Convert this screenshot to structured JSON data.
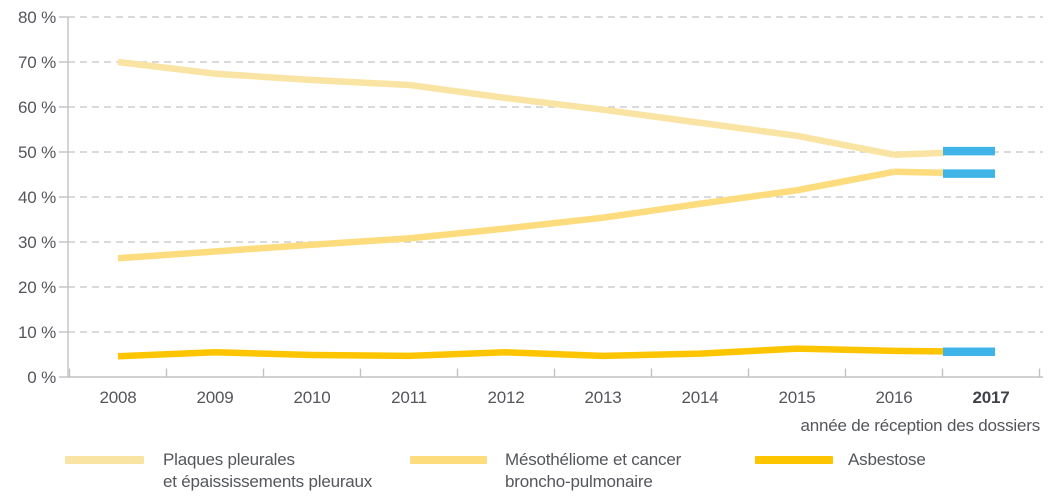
{
  "chart_data": {
    "type": "line",
    "title": "",
    "x": [
      2008,
      2009,
      2010,
      2011,
      2012,
      2013,
      2014,
      2015,
      2016,
      2017
    ],
    "xlabel": "année de réception des dossiers",
    "ylabel": "",
    "ylim": [
      0,
      80
    ],
    "ytick_step": 10,
    "ytick_suffix": " %",
    "grid": "horizontal dashed gridlines",
    "legend_position": "bottom",
    "series": [
      {
        "name": "Plaques pleurales et épaississements pleuraux",
        "color": "#fae4a4",
        "values": [
          70,
          67.4,
          66,
          64.9,
          62,
          59.4,
          56.5,
          53.6,
          49.4,
          50.2
        ]
      },
      {
        "name": "Mésothéliome et cancer broncho-pulmonaire",
        "color": "#fddc7e",
        "values": [
          26.4,
          27.9,
          29.4,
          30.8,
          33,
          35.4,
          38.5,
          41.5,
          45.6,
          45.2
        ]
      },
      {
        "name": "Asbestose",
        "color": "#fdc500",
        "values": [
          4.6,
          5.5,
          4.9,
          4.7,
          5.5,
          4.7,
          5.2,
          6.3,
          5.8,
          5.6
        ]
      }
    ],
    "highlight_2017": {
      "color": "#3eb4e8",
      "note": "final 2017 segment of each line drawn in blue"
    }
  },
  "axis": {
    "y_ticks": [
      "0 %",
      "10 %",
      "20 %",
      "30 %",
      "40 %",
      "50 %",
      "60 %",
      "70 %",
      "80 %"
    ],
    "x_ticks": [
      "2008",
      "2009",
      "2010",
      "2011",
      "2012",
      "2013",
      "2014",
      "2015",
      "2016",
      "2017"
    ],
    "bold_x_tick": "2017",
    "x_caption": "année de réception des dossiers"
  },
  "legend": {
    "items": [
      {
        "line1": "Plaques pleurales",
        "line2": "et épaississements pleuraux",
        "color": "#fae4a4"
      },
      {
        "line1": "Mésothéliome et cancer",
        "line2": "broncho-pulmonaire",
        "color": "#fddc7e"
      },
      {
        "line1": "Asbestose",
        "line2": "",
        "color": "#fdc500"
      }
    ]
  },
  "colors": {
    "grid": "#cdcdcd",
    "axis": "#c2c2c2",
    "text": "#54565b",
    "bold_text": "#3f4247",
    "highlight_blue": "#3eb4e8"
  }
}
